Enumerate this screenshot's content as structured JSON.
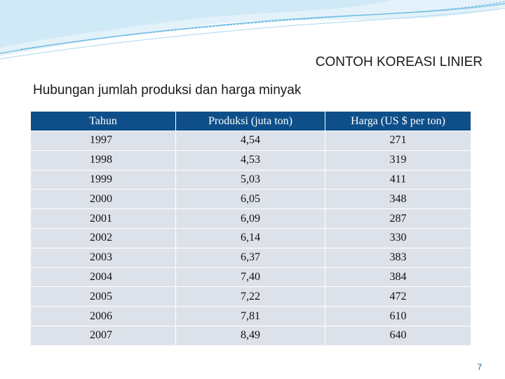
{
  "header": {
    "title": "CONTOH KOREASI LINIER",
    "subtitle": "Hubungan jumlah produksi dan harga minyak"
  },
  "table": {
    "columns": [
      "Tahun",
      "Produksi (juta ton)",
      "Harga (US $ per ton)"
    ],
    "rows": [
      [
        "1997",
        "4,54",
        "271"
      ],
      [
        "1998",
        "4,53",
        "319"
      ],
      [
        "1999",
        "5,03",
        "411"
      ],
      [
        "2000",
        "6,05",
        "348"
      ],
      [
        "2001",
        "6,09",
        "287"
      ],
      [
        "2002",
        "6,14",
        "330"
      ],
      [
        "2003",
        "6,37",
        "383"
      ],
      [
        "2004",
        "7,40",
        "384"
      ],
      [
        "2005",
        "7,22",
        "472"
      ],
      [
        "2006",
        "7,81",
        "610"
      ],
      [
        "2007",
        "8,49",
        "640"
      ]
    ]
  },
  "footer": {
    "page_number": "7"
  }
}
